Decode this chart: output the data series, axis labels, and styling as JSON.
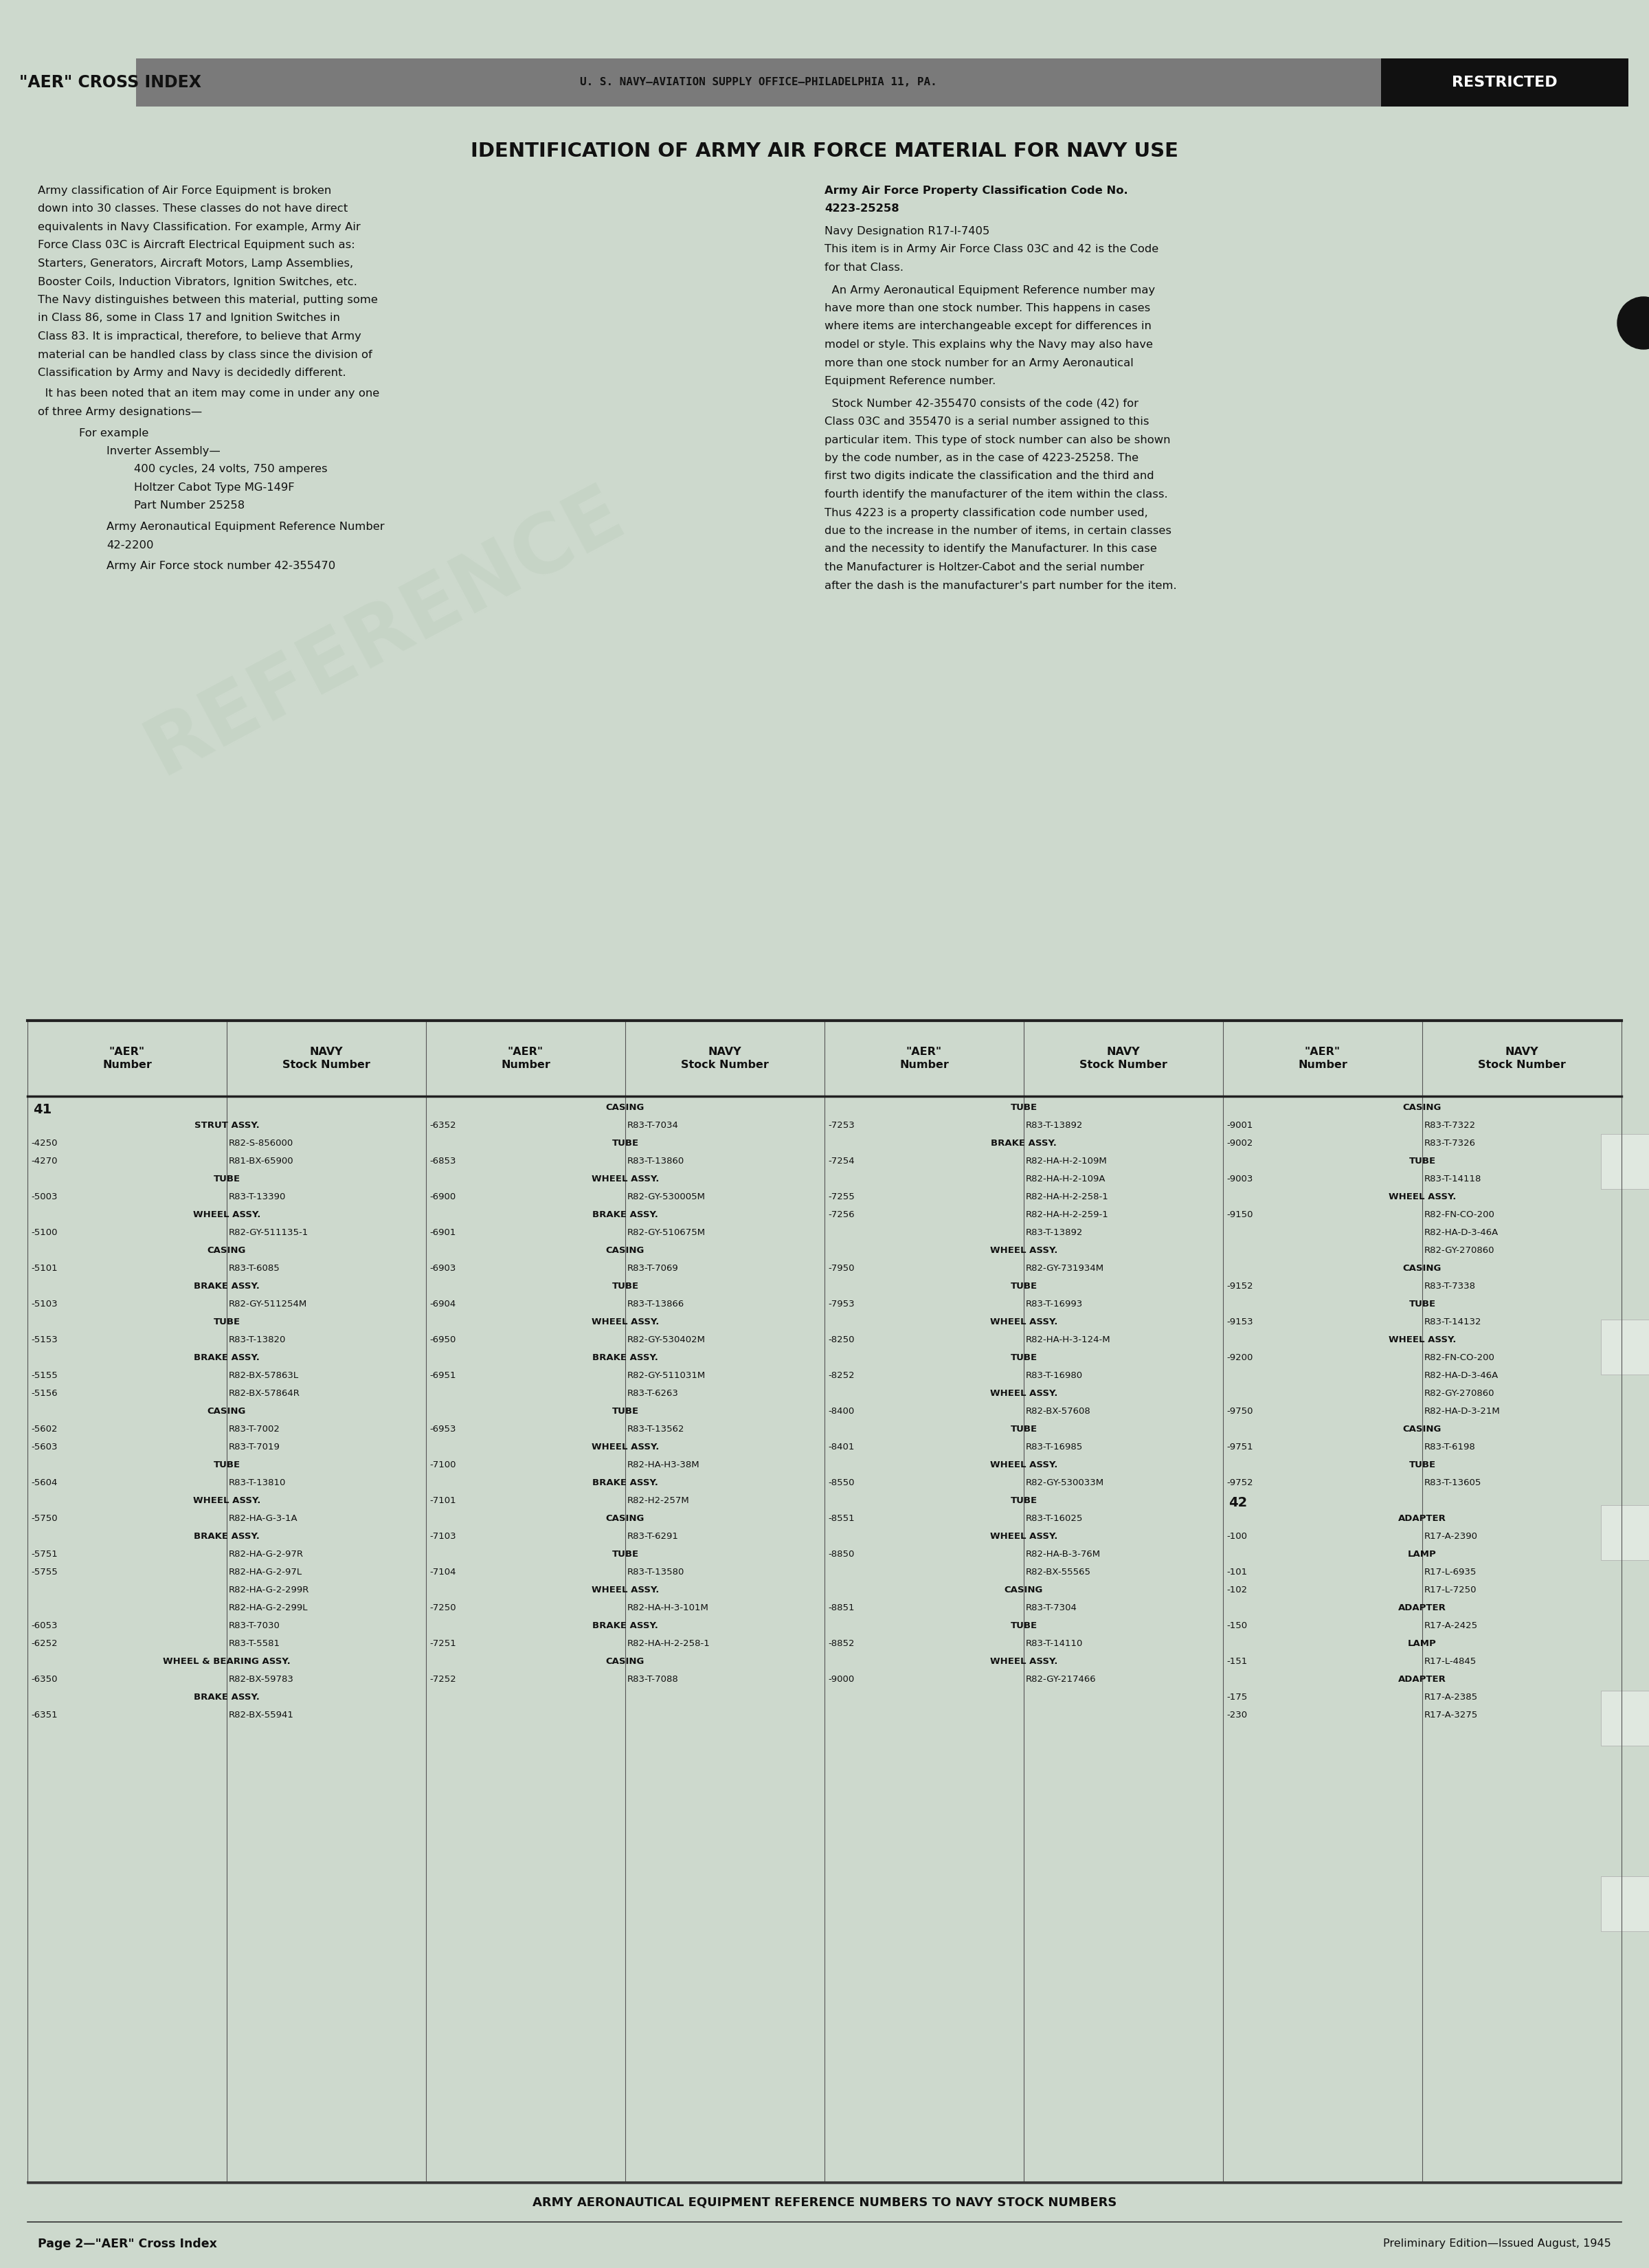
{
  "bg_color": "#cdd9cd",
  "text_color": "#1a1a1a",
  "page_title": "IDENTIFICATION OF ARMY AIR FORCE MATERIAL FOR NAVY USE",
  "header_left": "\"AER\" CROSS INDEX",
  "header_center": "U. S. NAVY—AVIATION SUPPLY OFFICE—PHILADELPHIA 11, PA.",
  "header_restricted": "RESTRICTED",
  "footer_text": "ARMY AERONAUTICAL EQUIPMENT REFERENCE NUMBERS TO NAVY STOCK NUMBERS",
  "page_label": "Page 2—\"AER\" Cross Index",
  "edition_text": "Preliminary Edition—Issued August, 1945",
  "left_body": [
    [
      "para",
      "Army classification of Air Force Equipment is broken down into 30 classes. These classes do not have direct equivalents in Navy Classification. For example, Army Air Force Class 03C is Aircraft Electrical Equipment such as: Starters, Generators, Aircraft Motors, Lamp Assemblies, Booster Coils, Induction Vibrators, Ignition Switches, etc. The Navy distinguishes between this material, putting some in Class 86, some in Class 17 and Ignition Switches in Class 83. It is impractical, therefore, to believe that Army material can be handled class by class since the division of Classification by Army and Navy is decidedly different."
    ],
    [
      "para",
      "  It has been noted that an item may come in under any one of three Army designations—"
    ],
    [
      "indent1",
      "For example"
    ],
    [
      "indent2",
      "Inverter Assembly—"
    ],
    [
      "indent3",
      "400 cycles, 24 volts, 750 amperes"
    ],
    [
      "indent3",
      "Holtzer Cabot Type MG-149F"
    ],
    [
      "indent3",
      "Part Number 25258"
    ],
    [
      "indent2",
      "Army Aeronautical Equipment Reference Number\n        42-2200"
    ],
    [
      "indent2",
      "Army Air Force stock number 42-355470"
    ]
  ],
  "right_body": [
    [
      "bold",
      "Army Air Force Property Classification Code No.\n4223-25258"
    ],
    [
      "blank",
      ""
    ],
    [
      "plain",
      "Navy Designation R17-I-7405"
    ],
    [
      "plain",
      "This item is in Army Air Force Class 03C and 42 is the Code for that Class."
    ],
    [
      "blank",
      ""
    ],
    [
      "para",
      "  An Army Aeronautical Equipment Reference number may have more than one stock number. This happens in cases where items are interchangeable except for differences in model or style. This explains why the Navy may also have more than one stock number for an Army Aeronautical Equipment Reference number."
    ],
    [
      "blank",
      ""
    ],
    [
      "para",
      "  Stock Number 42-355470 consists of the code (42) for Class 03C and 355470 is a serial number assigned to this particular item. This type of stock number can also be shown by the code number, as in the case of 4223-25258. The first two digits indicate the classification and the third and fourth identify the manufacturer of the item within the class. Thus 4223 is a property classification code number used, due to the increase in the number of items, in certain classes and the necessity to identify the Manufacturer. In this case the Manufacturer is Holtzer-Cabot and the serial number after the dash is the manufacturer's part number for the item."
    ]
  ],
  "col1_data": [
    [
      "41",
      "",
      "secnum"
    ],
    [
      "STRUT ASSY.",
      "",
      "cat"
    ],
    [
      "-4250",
      "R82-S-856000",
      "data"
    ],
    [
      "-4270",
      "R81-BX-65900",
      "data"
    ],
    [
      "TUBE",
      "",
      "cat"
    ],
    [
      "-5003",
      "R83-T-13390",
      "data"
    ],
    [
      "WHEEL ASSY.",
      "",
      "cat"
    ],
    [
      "-5100",
      "R82-GY-511135-1",
      "data"
    ],
    [
      "CASING",
      "",
      "cat"
    ],
    [
      "-5101",
      "R83-T-6085",
      "data"
    ],
    [
      "BRAKE ASSY.",
      "",
      "cat"
    ],
    [
      "-5103",
      "R82-GY-511254M",
      "data"
    ],
    [
      "TUBE",
      "",
      "cat"
    ],
    [
      "-5153",
      "R83-T-13820",
      "data"
    ],
    [
      "BRAKE ASSY.",
      "",
      "cat"
    ],
    [
      "-5155",
      "R82-BX-57863L",
      "data"
    ],
    [
      "-5156",
      "R82-BX-57864R",
      "data"
    ],
    [
      "CASING",
      "",
      "cat"
    ],
    [
      "-5602",
      "R83-T-7002",
      "data"
    ],
    [
      "-5603",
      "R83-T-7019",
      "data"
    ],
    [
      "TUBE",
      "",
      "cat"
    ],
    [
      "-5604",
      "R83-T-13810",
      "data"
    ],
    [
      "WHEEL ASSY.",
      "",
      "cat"
    ],
    [
      "-5750",
      "R82-HA-G-3-1A",
      "data"
    ],
    [
      "BRAKE ASSY.",
      "",
      "cat"
    ],
    [
      "-5751",
      "R82-HA-G-2-97R",
      "data"
    ],
    [
      "-5755",
      "R82-HA-G-2-97L",
      "data"
    ],
    [
      "",
      "R82-HA-G-2-299R",
      "data"
    ],
    [
      "",
      "R82-HA-G-2-299L",
      "data"
    ],
    [
      "-6053",
      "R83-T-7030",
      "data"
    ],
    [
      "-6252",
      "R83-T-5581",
      "data"
    ],
    [
      "WHEEL & BEARING ASSY.",
      "",
      "cat"
    ],
    [
      "-6350",
      "R82-BX-59783",
      "data"
    ],
    [
      "BRAKE ASSY.",
      "",
      "cat"
    ],
    [
      "-6351",
      "R82-BX-55941",
      "data"
    ]
  ],
  "col2_data": [
    [
      "CASING",
      "",
      "cat"
    ],
    [
      "-6352",
      "R83-T-7034",
      "data"
    ],
    [
      "TUBE",
      "",
      "cat"
    ],
    [
      "-6853",
      "R83-T-13860",
      "data"
    ],
    [
      "WHEEL ASSY.",
      "",
      "cat"
    ],
    [
      "-6900",
      "R82-GY-530005M",
      "data"
    ],
    [
      "BRAKE ASSY.",
      "",
      "cat"
    ],
    [
      "-6901",
      "R82-GY-510675M",
      "data"
    ],
    [
      "CASING",
      "",
      "cat"
    ],
    [
      "-6903",
      "R83-T-7069",
      "data"
    ],
    [
      "TUBE",
      "",
      "cat"
    ],
    [
      "-6904",
      "R83-T-13866",
      "data"
    ],
    [
      "WHEEL ASSY.",
      "",
      "cat"
    ],
    [
      "-6950",
      "R82-GY-530402M",
      "data"
    ],
    [
      "BRAKE ASSY.",
      "",
      "cat"
    ],
    [
      "-6951",
      "R82-GY-511031M",
      "data"
    ],
    [
      "",
      "R83-T-6263",
      "data"
    ],
    [
      "TUBE",
      "",
      "cat"
    ],
    [
      "-6953",
      "R83-T-13562",
      "data"
    ],
    [
      "WHEEL ASSY.",
      "",
      "cat"
    ],
    [
      "-7100",
      "R82-HA-H3-38M",
      "data"
    ],
    [
      "BRAKE ASSY.",
      "",
      "cat"
    ],
    [
      "-7101",
      "R82-H2-257M",
      "data"
    ],
    [
      "CASING",
      "",
      "cat"
    ],
    [
      "-7103",
      "R83-T-6291",
      "data"
    ],
    [
      "TUBE",
      "",
      "cat"
    ],
    [
      "-7104",
      "R83-T-13580",
      "data"
    ],
    [
      "WHEEL ASSY.",
      "",
      "cat"
    ],
    [
      "-7250",
      "R82-HA-H-3-101M",
      "data"
    ],
    [
      "BRAKE ASSY.",
      "",
      "cat"
    ],
    [
      "-7251",
      "R82-HA-H-2-258-1",
      "data"
    ],
    [
      "CASING",
      "",
      "cat"
    ],
    [
      "-7252",
      "R83-T-7088",
      "data"
    ]
  ],
  "col3_data": [
    [
      "TUBE",
      "",
      "cat"
    ],
    [
      "-7253",
      "R83-T-13892",
      "data"
    ],
    [
      "BRAKE ASSY.",
      "",
      "cat"
    ],
    [
      "-7254",
      "R82-HA-H-2-109M",
      "data"
    ],
    [
      "",
      "R82-HA-H-2-109A",
      "data"
    ],
    [
      "-7255",
      "R82-HA-H-2-258-1",
      "data"
    ],
    [
      "-7256",
      "R82-HA-H-2-259-1",
      "data"
    ],
    [
      "",
      "R83-T-13892",
      "data"
    ],
    [
      "WHEEL ASSY.",
      "",
      "cat"
    ],
    [
      "-7950",
      "R82-GY-731934M",
      "data"
    ],
    [
      "TUBE",
      "",
      "cat"
    ],
    [
      "-7953",
      "R83-T-16993",
      "data"
    ],
    [
      "WHEEL ASSY.",
      "",
      "cat"
    ],
    [
      "-8250",
      "R82-HA-H-3-124-M",
      "data"
    ],
    [
      "TUBE",
      "",
      "cat"
    ],
    [
      "-8252",
      "R83-T-16980",
      "data"
    ],
    [
      "WHEEL ASSY.",
      "",
      "cat"
    ],
    [
      "-8400",
      "R82-BX-57608",
      "data"
    ],
    [
      "TUBE",
      "",
      "cat"
    ],
    [
      "-8401",
      "R83-T-16985",
      "data"
    ],
    [
      "WHEEL ASSY.",
      "",
      "cat"
    ],
    [
      "-8550",
      "R82-GY-530033M",
      "data"
    ],
    [
      "TUBE",
      "",
      "cat"
    ],
    [
      "-8551",
      "R83-T-16025",
      "data"
    ],
    [
      "WHEEL ASSY.",
      "",
      "cat"
    ],
    [
      "-8850",
      "R82-HA-B-3-76M",
      "data"
    ],
    [
      "",
      "R82-BX-55565",
      "data"
    ],
    [
      "CASING",
      "",
      "cat"
    ],
    [
      "-8851",
      "R83-T-7304",
      "data"
    ],
    [
      "TUBE",
      "",
      "cat"
    ],
    [
      "-8852",
      "R83-T-14110",
      "data"
    ],
    [
      "WHEEL ASSY.",
      "",
      "cat"
    ],
    [
      "-9000",
      "R82-GY-217466",
      "data"
    ]
  ],
  "col4_data": [
    [
      "CASING",
      "",
      "cat"
    ],
    [
      "-9001",
      "R83-T-7322",
      "data"
    ],
    [
      "-9002",
      "R83-T-7326",
      "data"
    ],
    [
      "TUBE",
      "",
      "cat"
    ],
    [
      "-9003",
      "R83-T-14118",
      "data"
    ],
    [
      "WHEEL ASSY.",
      "",
      "cat"
    ],
    [
      "-9150",
      "R82-FN-CO-200",
      "data"
    ],
    [
      "",
      "R82-HA-D-3-46A",
      "data"
    ],
    [
      "",
      "R82-GY-270860",
      "data"
    ],
    [
      "CASING",
      "",
      "cat"
    ],
    [
      "-9152",
      "R83-T-7338",
      "data"
    ],
    [
      "TUBE",
      "",
      "cat"
    ],
    [
      "-9153",
      "R83-T-14132",
      "data"
    ],
    [
      "WHEEL ASSY.",
      "",
      "cat"
    ],
    [
      "-9200",
      "R82-FN-CO-200",
      "data"
    ],
    [
      "",
      "R82-HA-D-3-46A",
      "data"
    ],
    [
      "",
      "R82-GY-270860",
      "data"
    ],
    [
      "-9750",
      "R82-HA-D-3-21M",
      "data"
    ],
    [
      "CASING",
      "",
      "cat"
    ],
    [
      "-9751",
      "R83-T-6198",
      "data"
    ],
    [
      "TUBE",
      "",
      "cat"
    ],
    [
      "-9752",
      "R83-T-13605",
      "data"
    ],
    [
      "42",
      "",
      "secnum"
    ],
    [
      "ADAPTER",
      "",
      "cat"
    ],
    [
      "-100",
      "R17-A-2390",
      "data"
    ],
    [
      "LAMP",
      "",
      "cat"
    ],
    [
      "-101",
      "R17-L-6935",
      "data"
    ],
    [
      "-102",
      "R17-L-7250",
      "data"
    ],
    [
      "ADAPTER",
      "",
      "cat"
    ],
    [
      "-150",
      "R17-A-2425",
      "data"
    ],
    [
      "LAMP",
      "",
      "cat"
    ],
    [
      "-151",
      "R17-L-4845",
      "data"
    ],
    [
      "ADAPTER",
      "",
      "cat"
    ],
    [
      "-175",
      "R17-A-2385",
      "data"
    ],
    [
      "-230",
      "R17-A-3275",
      "data"
    ]
  ]
}
